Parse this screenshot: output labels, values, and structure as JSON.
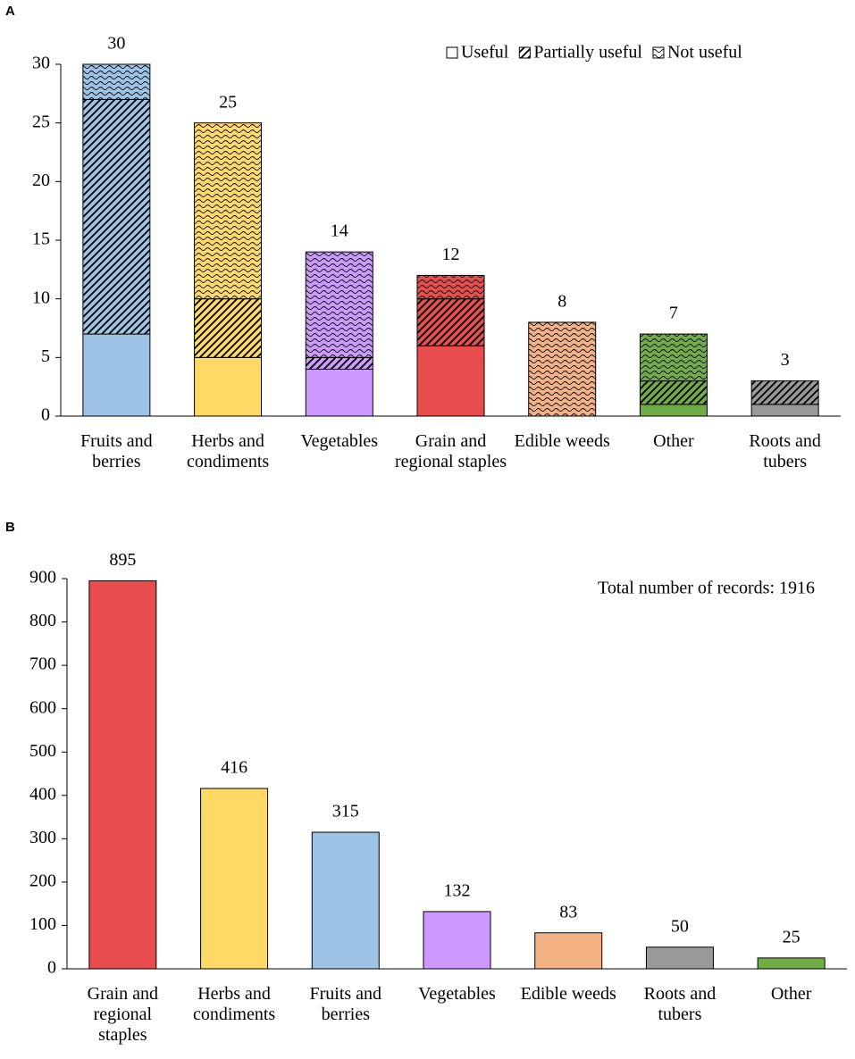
{
  "chart_data": [
    {
      "type": "stacked_bar",
      "panel": "A",
      "categories": [
        "Fruits and berries",
        "Herbs and condiments",
        "Vegetables",
        "Grain and regional staples",
        "Edible weeds",
        "Other",
        "Roots and tubers"
      ],
      "colors": [
        "#9dc3e6",
        "#ffd966",
        "#cc99ff",
        "#e84c4c",
        "#f4b183",
        "#70ad47",
        "#999999"
      ],
      "series": [
        {
          "name": "Useful",
          "pattern": "solid",
          "values": [
            7,
            5,
            4,
            6,
            0,
            1,
            1
          ]
        },
        {
          "name": "Partially useful",
          "pattern": "hatch",
          "values": [
            20,
            5,
            1,
            4,
            0,
            2,
            2
          ]
        },
        {
          "name": "Not useful",
          "pattern": "wave",
          "values": [
            3,
            15,
            9,
            2,
            8,
            4,
            0
          ]
        }
      ],
      "totals": [
        30,
        25,
        14,
        12,
        8,
        7,
        3
      ],
      "ylim": [
        0,
        30
      ],
      "yticks": [
        0,
        5,
        10,
        15,
        20,
        25,
        30
      ],
      "legend": "upper right"
    },
    {
      "type": "bar",
      "panel": "B",
      "categories": [
        "Grain and regional staples",
        "Herbs and condiments",
        "Fruits and berries",
        "Vegetables",
        "Edible weeds",
        "Roots and tubers",
        "Other"
      ],
      "colors": [
        "#e84c4c",
        "#ffd966",
        "#9dc3e6",
        "#cc99ff",
        "#f4b183",
        "#999999",
        "#70ad47"
      ],
      "values": [
        895,
        416,
        315,
        132,
        83,
        50,
        25
      ],
      "annotation": "Total number of records: 1916",
      "ylim": [
        0,
        900
      ],
      "yticks": [
        0,
        100,
        200,
        300,
        400,
        500,
        600,
        700,
        800,
        900
      ]
    }
  ]
}
